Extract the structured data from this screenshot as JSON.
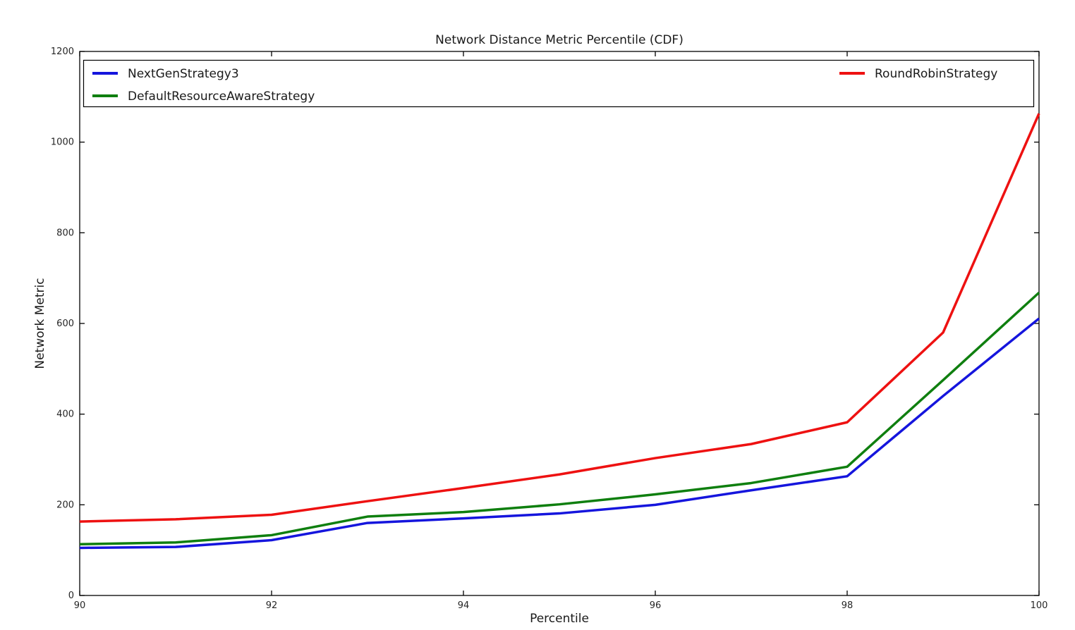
{
  "chart_data": {
    "type": "line",
    "title": "Network Distance Metric Percentile (CDF)",
    "xlabel": "Percentile",
    "ylabel": "Network Metric",
    "xlim": [
      90,
      100
    ],
    "ylim": [
      0,
      1200
    ],
    "x_ticks": [
      90,
      92,
      94,
      96,
      98,
      100
    ],
    "y_ticks": [
      0,
      200,
      400,
      600,
      800,
      1000,
      1200
    ],
    "grid": false,
    "legend_position": "top-inside, full plot width, 2 columns",
    "x": [
      90,
      91,
      92,
      93,
      94,
      95,
      96,
      97,
      98,
      99,
      100
    ],
    "series": [
      {
        "name": "NextGenStrategy3",
        "color": "#1515dd",
        "values": [
          105,
          107,
          122,
          160,
          170,
          181,
          200,
          232,
          263,
          440,
          611
        ]
      },
      {
        "name": "DefaultResourceAwareStrategy",
        "color": "#0f7f0f",
        "values": [
          113,
          117,
          133,
          174,
          184,
          201,
          223,
          248,
          284,
          475,
          668
        ]
      },
      {
        "name": "RoundRobinStrategy",
        "color": "#ee1111",
        "values": [
          163,
          168,
          178,
          208,
          237,
          267,
          303,
          334,
          382,
          580,
          1063
        ]
      }
    ],
    "frame_color": "#000000",
    "background_color": "#ffffff"
  }
}
